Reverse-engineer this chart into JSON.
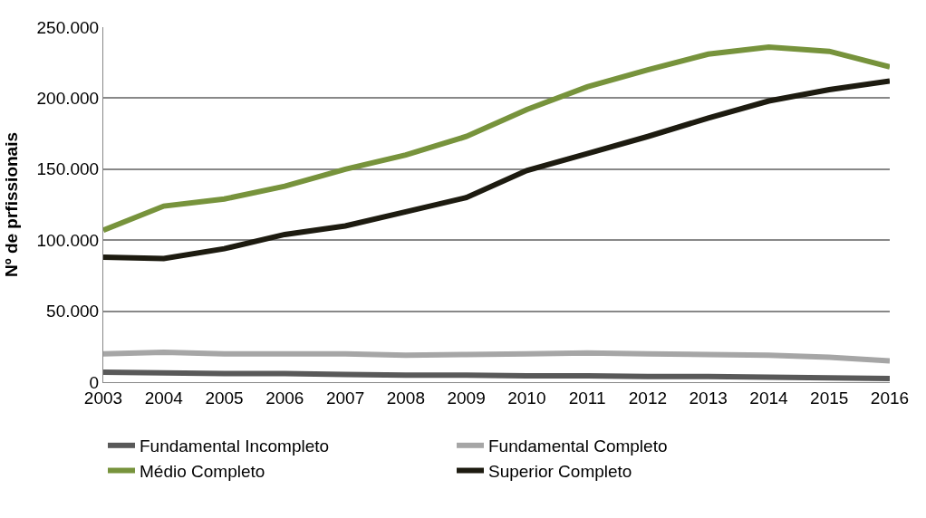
{
  "chart_data": {
    "type": "line",
    "ylabel": "Nº de prfissionais",
    "categories": [
      "2003",
      "2004",
      "2005",
      "2006",
      "2007",
      "2008",
      "2009",
      "2010",
      "2011",
      "2012",
      "2013",
      "2014",
      "2015",
      "2016"
    ],
    "series": [
      {
        "name": "Fundamental Incompleto",
        "color": "#595959",
        "values": [
          7000,
          6500,
          6000,
          6000,
          5500,
          5000,
          5000,
          4500,
          4500,
          4000,
          4000,
          3500,
          3000,
          2500
        ]
      },
      {
        "name": "Fundamental Completo",
        "color": "#a6a6a6",
        "values": [
          20000,
          21000,
          20000,
          20000,
          20000,
          19000,
          19500,
          20000,
          20500,
          20000,
          19500,
          19000,
          17500,
          15000
        ]
      },
      {
        "name": "Médio Completo",
        "color": "#77933c",
        "values": [
          107000,
          124000,
          129000,
          138000,
          150000,
          160000,
          173000,
          192000,
          208000,
          220000,
          231000,
          236000,
          233000,
          222000
        ]
      },
      {
        "name": "Superior Completo",
        "color": "#1d1b10",
        "values": [
          88000,
          87000,
          94000,
          104000,
          110000,
          120000,
          130000,
          149000,
          161000,
          173000,
          186000,
          198000,
          206000,
          212000
        ]
      }
    ],
    "ylim": [
      0,
      250000
    ],
    "yticks": [
      {
        "value": 0,
        "label": "0"
      },
      {
        "value": 50000,
        "label": "50.000"
      },
      {
        "value": 100000,
        "label": "100.000"
      },
      {
        "value": 150000,
        "label": "150.000"
      },
      {
        "value": 200000,
        "label": "200.000"
      },
      {
        "value": 250000,
        "label": "250.000"
      }
    ],
    "grid": "y",
    "legend": "bottom",
    "marker": "none",
    "line_style": "solid"
  }
}
